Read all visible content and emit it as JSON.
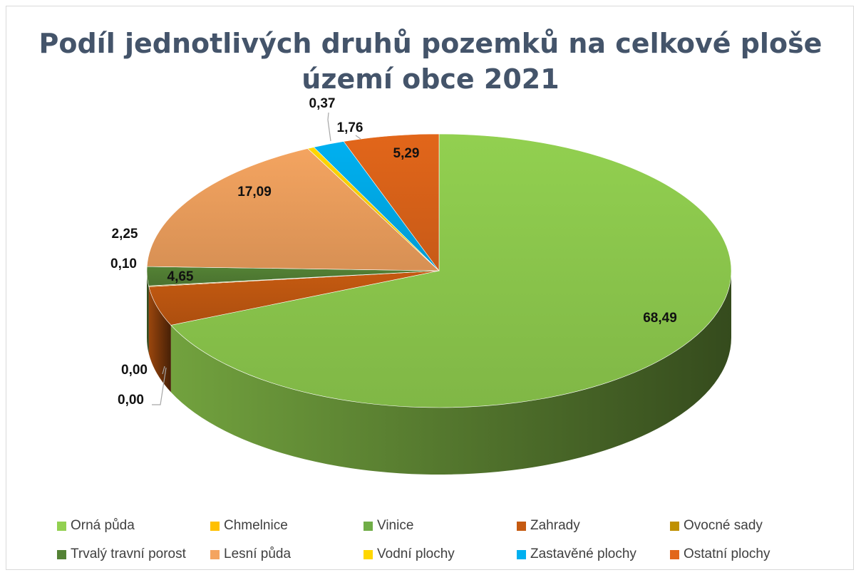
{
  "chart_data": {
    "type": "pie",
    "title": "Podíl jednotlivých druhů pozemků na celkové ploše území obce 2021",
    "categories": [
      "Orná půda",
      "Chmelnice",
      "Vinice",
      "Zahrady",
      "Ovocné sady",
      "Trvalý travní porost",
      "Lesní půda",
      "Vodní plochy",
      "Zastavěné plochy",
      "Ostatní plochy"
    ],
    "values": [
      68.49,
      0.0,
      0.0,
      4.65,
      0.1,
      2.25,
      17.09,
      0.37,
      1.76,
      5.29
    ],
    "data_labels": [
      "68,49",
      "0,00",
      "0,00",
      "4,65",
      "0,10",
      "2,25",
      "17,09",
      "0,37",
      "1,76",
      "5,29"
    ],
    "colors": [
      "#92d050",
      "#ffc000",
      "#70ad47",
      "#c55a11",
      "#bf9000",
      "#548235",
      "#f4a460",
      "#ffd700",
      "#00b0f0",
      "#e2661a"
    ],
    "legend_position": "bottom",
    "style": "3d"
  }
}
